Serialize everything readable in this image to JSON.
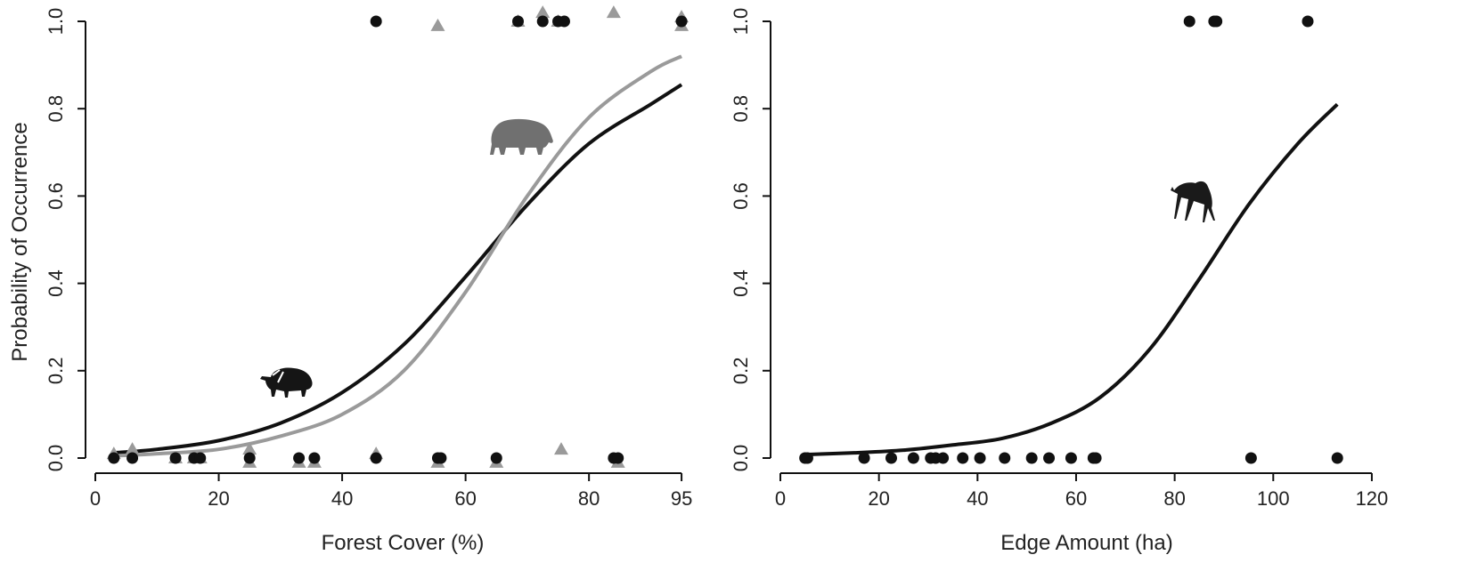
{
  "chart_data": [
    {
      "type": "scatter",
      "title": "",
      "xlabel": "Forest Cover (%)",
      "ylabel": "Probability of Occurrence",
      "xlim": [
        0,
        96
      ],
      "ylim": [
        0,
        1
      ],
      "xticks": [
        0,
        20,
        40,
        60,
        80,
        95
      ],
      "yticks": [
        0.0,
        0.2,
        0.4,
        0.6,
        0.8,
        1.0
      ],
      "x_tick_labels": [
        "0",
        "20",
        "40",
        "60",
        "80",
        "95"
      ],
      "y_tick_labels": [
        "0.0",
        "0.2",
        "0.4",
        "0.6",
        "0.8",
        "1.0"
      ],
      "grid": false,
      "icons": [
        "peccary-silhouette",
        "tapir-silhouette"
      ],
      "series": [
        {
          "marker": "circle",
          "color": "#111111",
          "points": [
            [
              3,
              0
            ],
            [
              6,
              0
            ],
            [
              13,
              0
            ],
            [
              16,
              0
            ],
            [
              17,
              0
            ],
            [
              25,
              0
            ],
            [
              33,
              0
            ],
            [
              35.5,
              0
            ],
            [
              45.5,
              0
            ],
            [
              55.5,
              0
            ],
            [
              56,
              0
            ],
            [
              65,
              0
            ],
            [
              84,
              0
            ],
            [
              84.7,
              0
            ],
            [
              45.5,
              1
            ],
            [
              68.5,
              1
            ],
            [
              72.5,
              1
            ],
            [
              75,
              1
            ],
            [
              76,
              1
            ],
            [
              95,
              1
            ]
          ]
        },
        {
          "marker": "triangle",
          "color": "#9a9a9a",
          "points": [
            [
              3,
              0.01
            ],
            [
              6,
              0.02
            ],
            [
              13,
              0
            ],
            [
              16,
              0
            ],
            [
              17,
              0
            ],
            [
              25,
              0.02
            ],
            [
              25,
              -0.01
            ],
            [
              33,
              -0.01
            ],
            [
              35.5,
              -0.01
            ],
            [
              45.5,
              0.01
            ],
            [
              55.5,
              -0.01
            ],
            [
              65,
              -0.01
            ],
            [
              75.5,
              0.02
            ],
            [
              84.7,
              -0.01
            ],
            [
              55.5,
              0.99
            ],
            [
              68.5,
              1.0
            ],
            [
              72.5,
              1.02
            ],
            [
              75,
              1.0
            ],
            [
              84,
              1.02
            ],
            [
              95,
              0.99
            ],
            [
              95,
              1.01
            ]
          ]
        },
        {
          "marker": "line",
          "color": "#111111",
          "curve": [
            [
              3,
              0.012
            ],
            [
              10,
              0.02
            ],
            [
              20,
              0.04
            ],
            [
              30,
              0.08
            ],
            [
              40,
              0.15
            ],
            [
              50,
              0.26
            ],
            [
              60,
              0.415
            ],
            [
              70,
              0.58
            ],
            [
              80,
              0.72
            ],
            [
              90,
              0.81
            ],
            [
              95,
              0.855
            ]
          ]
        },
        {
          "marker": "line",
          "color": "#9a9a9a",
          "curve": [
            [
              3,
              0.005
            ],
            [
              10,
              0.01
            ],
            [
              20,
              0.02
            ],
            [
              30,
              0.05
            ],
            [
              40,
              0.1
            ],
            [
              50,
              0.2
            ],
            [
              60,
              0.38
            ],
            [
              70,
              0.6
            ],
            [
              80,
              0.78
            ],
            [
              90,
              0.885
            ],
            [
              95,
              0.92
            ]
          ]
        }
      ]
    },
    {
      "type": "scatter",
      "title": "",
      "xlabel": "Edge Amount (ha)",
      "ylabel": "",
      "xlim": [
        0,
        122
      ],
      "ylim": [
        0,
        1
      ],
      "xticks": [
        0,
        20,
        40,
        60,
        80,
        100,
        120
      ],
      "yticks": [
        0.0,
        0.2,
        0.4,
        0.6,
        0.8,
        1.0
      ],
      "x_tick_labels": [
        "0",
        "20",
        "40",
        "60",
        "80",
        "100",
        "120"
      ],
      "y_tick_labels": [
        "0.0",
        "0.2",
        "0.4",
        "0.6",
        "0.8",
        "1.0"
      ],
      "grid": false,
      "icons": [
        "maned-wolf-silhouette"
      ],
      "series": [
        {
          "marker": "circle",
          "color": "#111111",
          "points": [
            [
              5,
              0
            ],
            [
              5.5,
              0
            ],
            [
              17,
              0
            ],
            [
              22.5,
              0
            ],
            [
              27,
              0
            ],
            [
              30.5,
              0
            ],
            [
              31.5,
              0
            ],
            [
              33,
              0
            ],
            [
              37,
              0
            ],
            [
              40.5,
              0
            ],
            [
              45.5,
              0
            ],
            [
              51,
              0
            ],
            [
              54.5,
              0
            ],
            [
              59,
              0
            ],
            [
              63.5,
              0
            ],
            [
              64,
              0
            ],
            [
              95.5,
              0
            ],
            [
              113,
              0
            ],
            [
              83,
              1
            ],
            [
              88,
              1
            ],
            [
              88.5,
              1
            ],
            [
              107,
              1
            ]
          ]
        },
        {
          "marker": "line",
          "color": "#111111",
          "curve": [
            [
              5,
              0.008
            ],
            [
              15,
              0.012
            ],
            [
              25,
              0.018
            ],
            [
              35,
              0.03
            ],
            [
              45,
              0.045
            ],
            [
              55,
              0.08
            ],
            [
              65,
              0.14
            ],
            [
              75,
              0.25
            ],
            [
              85,
              0.41
            ],
            [
              95,
              0.58
            ],
            [
              105,
              0.72
            ],
            [
              113,
              0.81
            ]
          ]
        }
      ]
    }
  ]
}
